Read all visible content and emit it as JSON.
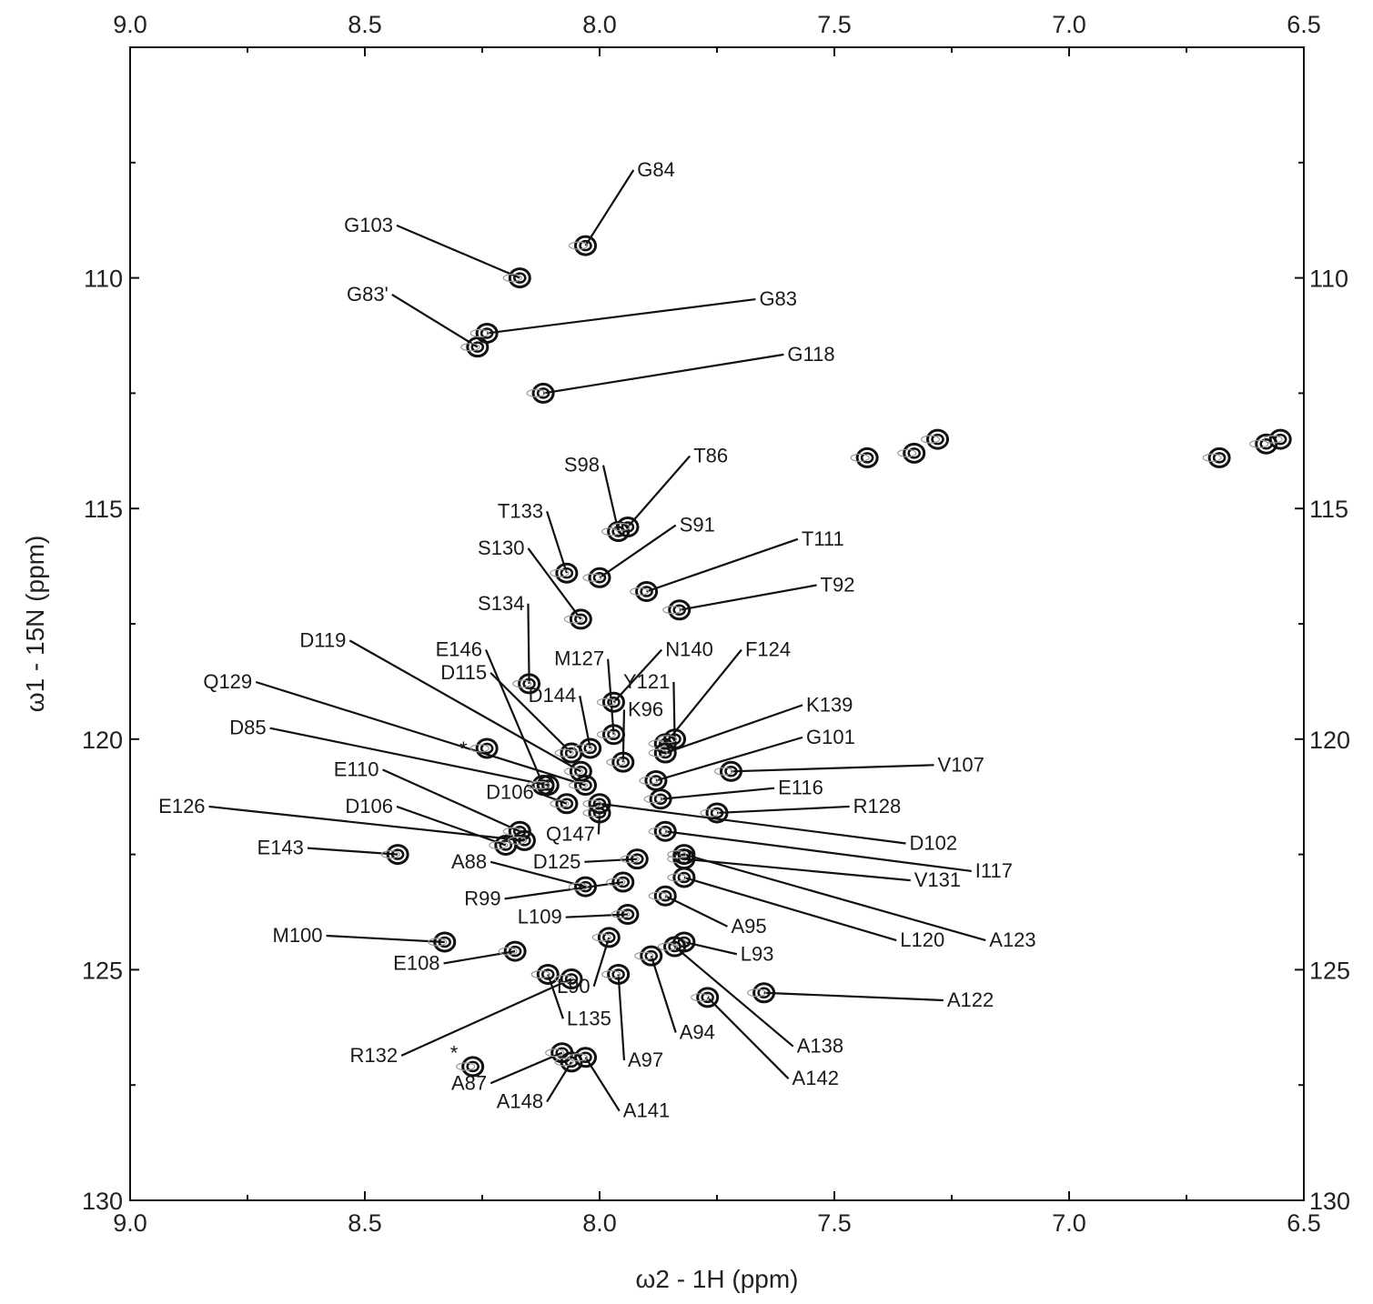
{
  "chart_data": {
    "type": "scatter",
    "xlabel": "ω2 - 1H  (ppm)",
    "ylabel": "ω1 - 15N  (ppm)",
    "xlim": [
      9.0,
      6.5
    ],
    "ylim": [
      105,
      130
    ],
    "x_ticks": [
      "9.0",
      "8.5",
      "8.0",
      "7.5",
      "7.0",
      "6.5"
    ],
    "y_ticks": [
      "110",
      "115",
      "120",
      "125",
      "130"
    ],
    "axes_on_all_sides": true,
    "grid": false,
    "peaks": [
      {
        "label": "G84",
        "x": 8.03,
        "y": 109.3,
        "lx": 7.92,
        "ly": 107.8
      },
      {
        "label": "G103",
        "x": 8.17,
        "y": 110.0,
        "lx": 8.44,
        "ly": 109.0
      },
      {
        "label": "G83'",
        "x": 8.26,
        "y": 111.5,
        "lx": 8.45,
        "ly": 110.5
      },
      {
        "label": "G83",
        "x": 8.24,
        "y": 111.2,
        "lx": 7.66,
        "ly": 110.6
      },
      {
        "label": "G118",
        "x": 8.12,
        "y": 112.5,
        "lx": 7.6,
        "ly": 111.8
      },
      {
        "label": "S98",
        "x": 7.96,
        "y": 115.5,
        "lx": 8.0,
        "ly": 114.2
      },
      {
        "label": "T86",
        "x": 7.94,
        "y": 115.4,
        "lx": 7.8,
        "ly": 114.0
      },
      {
        "label": "T133",
        "x": 8.07,
        "y": 116.4,
        "lx": 8.12,
        "ly": 115.2
      },
      {
        "label": "S91",
        "x": 8.0,
        "y": 116.5,
        "lx": 7.83,
        "ly": 115.5
      },
      {
        "label": "S130",
        "x": 8.04,
        "y": 117.4,
        "lx": 8.16,
        "ly": 116.0
      },
      {
        "label": "T111",
        "x": 7.9,
        "y": 116.8,
        "lx": 7.57,
        "ly": 115.8
      },
      {
        "label": "T92",
        "x": 7.83,
        "y": 117.2,
        "lx": 7.53,
        "ly": 116.8
      },
      {
        "label": "S134",
        "x": 8.15,
        "y": 118.8,
        "lx": 8.16,
        "ly": 117.2
      },
      {
        "label": "D119",
        "x": 8.04,
        "y": 120.7,
        "lx": 8.54,
        "ly": 118.0
      },
      {
        "label": "E146",
        "x": 8.12,
        "y": 121.0,
        "lx": 8.25,
        "ly": 118.2
      },
      {
        "label": "M127",
        "x": 7.97,
        "y": 119.9,
        "lx": 7.99,
        "ly": 118.4
      },
      {
        "label": "N140",
        "x": 7.97,
        "y": 119.2,
        "lx": 7.86,
        "ly": 118.2
      },
      {
        "label": "F124",
        "x": 7.86,
        "y": 120.1,
        "lx": 7.69,
        "ly": 118.2
      },
      {
        "label": "D115",
        "x": 8.06,
        "y": 120.3,
        "lx": 8.24,
        "ly": 118.7
      },
      {
        "label": "Y121",
        "x": 7.84,
        "y": 120.0,
        "lx": 7.85,
        "ly": 118.9
      },
      {
        "label": "D144",
        "x": 8.02,
        "y": 120.2,
        "lx": 8.05,
        "ly": 119.2
      },
      {
        "label": "Q129",
        "x": 8.03,
        "y": 121.0,
        "lx": 8.74,
        "ly": 118.9
      },
      {
        "label": "K96",
        "x": 7.95,
        "y": 120.5,
        "lx": 7.94,
        "ly": 119.5
      },
      {
        "label": "K139",
        "x": 7.86,
        "y": 120.3,
        "lx": 7.56,
        "ly": 119.4
      },
      {
        "label": "D85",
        "x": 8.11,
        "y": 121.0,
        "lx": 8.71,
        "ly": 119.9
      },
      {
        "label": "G101",
        "x": 7.88,
        "y": 120.9,
        "lx": 7.56,
        "ly": 120.1
      },
      {
        "label": "V107",
        "x": 7.72,
        "y": 120.7,
        "lx": 7.28,
        "ly": 120.7
      },
      {
        "label": "E110",
        "x": 8.17,
        "y": 122.0,
        "lx": 8.47,
        "ly": 120.8
      },
      {
        "label": "E116",
        "x": 7.87,
        "y": 121.3,
        "lx": 7.62,
        "ly": 121.2
      },
      {
        "label": "D106",
        "x": 8.07,
        "y": 121.4,
        "lx": 8.14,
        "ly": 121.3
      },
      {
        "label": "R128",
        "x": 7.75,
        "y": 121.6,
        "lx": 7.46,
        "ly": 121.6
      },
      {
        "label": "D106",
        "x": 8.2,
        "y": 122.3,
        "lx": 8.44,
        "ly": 121.6
      },
      {
        "label": "E126",
        "x": 8.16,
        "y": 122.2,
        "lx": 8.84,
        "ly": 121.6
      },
      {
        "label": "Q147",
        "x": 8.0,
        "y": 121.6,
        "lx": 8.01,
        "ly": 122.2
      },
      {
        "label": "D102",
        "x": 8.0,
        "y": 121.4,
        "lx": 7.34,
        "ly": 122.4
      },
      {
        "label": "E143",
        "x": 8.43,
        "y": 122.5,
        "lx": 8.63,
        "ly": 122.5
      },
      {
        "label": "D125",
        "x": 7.92,
        "y": 122.6,
        "lx": 8.04,
        "ly": 122.8
      },
      {
        "label": "I117",
        "x": 7.86,
        "y": 122.0,
        "lx": 7.2,
        "ly": 123.0
      },
      {
        "label": "V131",
        "x": 7.82,
        "y": 122.6,
        "lx": 7.33,
        "ly": 123.2
      },
      {
        "label": "A88",
        "x": 8.03,
        "y": 123.2,
        "lx": 8.24,
        "ly": 122.8
      },
      {
        "label": "R99",
        "x": 7.95,
        "y": 123.1,
        "lx": 8.21,
        "ly": 123.6
      },
      {
        "label": "L109",
        "x": 7.94,
        "y": 123.8,
        "lx": 8.08,
        "ly": 124.0
      },
      {
        "label": "A95",
        "x": 7.86,
        "y": 123.4,
        "lx": 7.72,
        "ly": 124.2
      },
      {
        "label": "L120",
        "x": 7.82,
        "y": 123.0,
        "lx": 7.36,
        "ly": 124.5
      },
      {
        "label": "A123",
        "x": 7.82,
        "y": 122.5,
        "lx": 7.17,
        "ly": 124.5
      },
      {
        "label": "M100",
        "x": 8.33,
        "y": 124.4,
        "lx": 8.59,
        "ly": 124.4
      },
      {
        "label": "L93",
        "x": 7.82,
        "y": 124.4,
        "lx": 7.7,
        "ly": 124.8
      },
      {
        "label": "L90",
        "x": 7.98,
        "y": 124.3,
        "lx": 8.02,
        "ly": 125.5
      },
      {
        "label": "E108",
        "x": 8.18,
        "y": 124.6,
        "lx": 8.34,
        "ly": 125.0
      },
      {
        "label": "A122",
        "x": 7.65,
        "y": 125.5,
        "lx": 7.26,
        "ly": 125.8
      },
      {
        "label": "L135",
        "x": 8.11,
        "y": 125.1,
        "lx": 8.07,
        "ly": 126.2
      },
      {
        "label": "A97",
        "x": 7.96,
        "y": 125.1,
        "lx": 7.94,
        "ly": 127.1
      },
      {
        "label": "A94",
        "x": 7.89,
        "y": 124.7,
        "lx": 7.83,
        "ly": 126.5
      },
      {
        "label": "A138",
        "x": 7.84,
        "y": 124.5,
        "lx": 7.58,
        "ly": 126.8
      },
      {
        "label": "A142",
        "x": 7.77,
        "y": 125.6,
        "lx": 7.59,
        "ly": 127.5
      },
      {
        "label": "R132",
        "x": 8.06,
        "y": 125.2,
        "lx": 8.43,
        "ly": 127.0
      },
      {
        "label": "A87",
        "x": 8.08,
        "y": 126.8,
        "lx": 8.24,
        "ly": 127.6
      },
      {
        "label": "A148",
        "x": 8.06,
        "y": 127.0,
        "lx": 8.12,
        "ly": 128.0
      },
      {
        "label": "A141",
        "x": 8.03,
        "y": 126.9,
        "lx": 7.95,
        "ly": 128.2
      }
    ],
    "unassigned_peaks": [
      {
        "x": 7.43,
        "y": 113.9
      },
      {
        "x": 7.33,
        "y": 113.8
      },
      {
        "x": 7.28,
        "y": 113.5
      },
      {
        "x": 6.68,
        "y": 113.9
      },
      {
        "x": 6.58,
        "y": 113.6
      },
      {
        "x": 6.55,
        "y": 113.5
      }
    ],
    "annotations": [
      {
        "text": "*",
        "x": 8.29,
        "y": 120.2
      },
      {
        "text": "*",
        "x": 8.31,
        "y": 126.8
      }
    ],
    "star_peaks": [
      {
        "x": 8.24,
        "y": 120.2
      },
      {
        "x": 8.27,
        "y": 127.1
      }
    ]
  }
}
